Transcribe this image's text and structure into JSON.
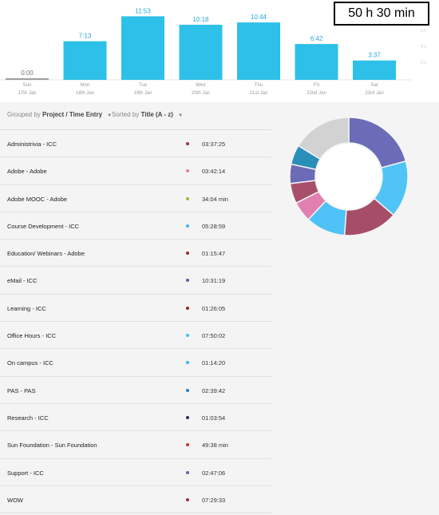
{
  "total": "50 h 30 min",
  "axis_hints": [
    "8 h",
    "6 h",
    "4 h",
    "2 h"
  ],
  "chart_data": {
    "type": "bar",
    "categories": [
      "Sun",
      "Mon",
      "Tue",
      "Wed",
      "Thu",
      "Fri",
      "Sat"
    ],
    "dates": [
      "17th Jan",
      "18th Jan",
      "19th Jan",
      "20th Jan",
      "21st Jan",
      "22nd Jan",
      "23rd Jan"
    ],
    "labels": [
      "0:00",
      "7:13",
      "11:53",
      "10:18",
      "10:44",
      "6:42",
      "3:37"
    ],
    "values": [
      0,
      7.22,
      11.88,
      10.3,
      10.73,
      6.7,
      3.62
    ],
    "bar_color": "#2dc0e8",
    "empty_color": "#9e9e9e",
    "label_color": "#2aa6d8"
  },
  "toolbar": {
    "grouped_prefix": "Grouped by",
    "grouped_value": "Project / Time Entry",
    "sorted_prefix": "Sorted by",
    "sorted_value": "Title (A - z)"
  },
  "entries": [
    {
      "title": "Administrivia - ICC",
      "duration": "03:37:25",
      "color": "#a0304a"
    },
    {
      "title": "Adobe - Adobe",
      "duration": "03:42:14",
      "color": "#e87aa7"
    },
    {
      "title": "Adobe MOOC - Adobe",
      "duration": "34:04 min",
      "color": "#9cbb3a"
    },
    {
      "title": "Course Development - ICC",
      "duration": "05:28:59",
      "color": "#3bb6ee"
    },
    {
      "title": "Education/ Webinars - Adobe",
      "duration": "01:15:47",
      "color": "#a02a2a"
    },
    {
      "title": "eMail - ICC",
      "duration": "10:31:19",
      "color": "#5c5cb8"
    },
    {
      "title": "Learning - ICC",
      "duration": "01:26:05",
      "color": "#8a2b2b"
    },
    {
      "title": "Office Hours - ICC",
      "duration": "07:50:02",
      "color": "#44c1f4"
    },
    {
      "title": "On campus - ICC",
      "duration": "01:14:20",
      "color": "#3ab7f0"
    },
    {
      "title": "PAS - PAS",
      "duration": "02:39:42",
      "color": "#2a7cc4"
    },
    {
      "title": "Research - ICC",
      "duration": "01:03:54",
      "color": "#22305a"
    },
    {
      "title": "Sun Foundation - Sun Foundation",
      "duration": "49:38 min",
      "color": "#c0392b"
    },
    {
      "title": "Support - ICC",
      "duration": "02:47:06",
      "color": "#6060b0"
    },
    {
      "title": "WOW",
      "duration": "07:29:33",
      "color": "#a0304a"
    }
  ],
  "donut": {
    "segments": [
      {
        "value": 10.52,
        "color": "#6b6bb8"
      },
      {
        "value": 7.83,
        "color": "#50c4f7"
      },
      {
        "value": 7.49,
        "color": "#a64d68"
      },
      {
        "value": 5.48,
        "color": "#4ec2f6"
      },
      {
        "value": 2.8,
        "color": "#e07fb0"
      },
      {
        "value": 2.79,
        "color": "#a8506a"
      },
      {
        "value": 2.66,
        "color": "#6b6bb8"
      },
      {
        "value": 2.7,
        "color": "#2a8fb8"
      },
      {
        "value": 8.23,
        "color": "#d2d2d2"
      }
    ]
  }
}
